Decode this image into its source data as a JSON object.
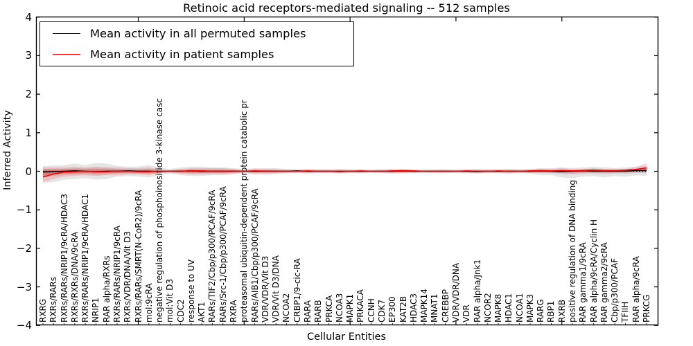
{
  "figure": {
    "title": "Retinoic acid receptors-mediated signaling -- 512 samples",
    "xlabel": "Cellular Entities",
    "ylabel": "Inferred Activity"
  },
  "legend": {
    "entries": [
      {
        "label": "Mean activity in all permuted samples",
        "color": "#000000"
      },
      {
        "label": "Mean activity in patient samples",
        "color": "#ff0000"
      }
    ]
  },
  "axes": {
    "y_tick_labels": [
      "4",
      "3",
      "2",
      "1",
      "0",
      "−1",
      "−2",
      "−3",
      "−4"
    ],
    "y_tick_values": [
      4,
      3,
      2,
      1,
      0,
      -1,
      -2,
      -3,
      -4
    ],
    "y_range": [
      -4,
      4
    ],
    "x_major_tick_indices": [
      9,
      19,
      29,
      39,
      49
    ]
  },
  "chart_data": {
    "type": "line",
    "title": "Retinoic acid receptors-mediated signaling -- 512 samples",
    "xlabel": "Cellular Entities",
    "ylabel": "Inferred Activity",
    "ylim": [
      -4,
      4
    ],
    "grid": false,
    "legend_position": "upper left",
    "categories": [
      "RXRG",
      "RXRs/RARs",
      "RXRs/RARs/NRIP1/9cRA/HDAC3",
      "RXRs/RXRs/DNA/9cRA",
      "RXRs/RARs/NRIP1/9cRA/HDAC1",
      "NRIP1",
      "RAR alpha/RXRs",
      "RXRs/RARs/NRIP1/9cRA",
      "RXRs/VDR/DNA/Vit D3",
      "RXRs/RARs/SMRT(N-CoR2)/9cRA",
      "mol:9cRA",
      "negative regulation of phosphoinositide 3-kinase casc",
      "mol:Vit D3",
      "CDC2",
      "response to UV",
      "AKT1",
      "RARs/TIF2/Cbp/p300/PCAF/9cRA",
      "RARs/Src-1/Cbp/p300/PCAF/9cRA",
      "RXRA",
      "proteasomal ubiquitin-dependent protein catabolic pr",
      "RARs/AIB1/Cbp/p300/PCAF/9cRA",
      "VDR/VDR/Vit D3",
      "VDR/Vit D3/DNA",
      "NCOA2",
      "CRBP1/9-cic-RA",
      "RARA",
      "RARB",
      "PRKCA",
      "NCOA3",
      "MAPK1",
      "PRKACA",
      "CCNH",
      "CDK7",
      "EP300",
      "KAT2B",
      "HDAC3",
      "MAPK14",
      "MNAT1",
      "CREBBP",
      "VDR/VDR/DNA",
      "VDR",
      "RAR alpha/Jnk1",
      "NCOR2",
      "MAPK8",
      "HDAC1",
      "NCOA1",
      "MAPK3",
      "RARG",
      "RBP1",
      "RXRB",
      "positive regulation of DNA binding",
      "RAR gamma1/9cRA",
      "RAR alpha/9cRA/Cyclin H",
      "RAR gamma2/9cRA",
      "Cbp/p300/PCAF",
      "TFIIH",
      "RAR alpha/9cRA",
      "PRKCG"
    ],
    "series": [
      {
        "name": "Mean activity in all permuted samples",
        "color": "#000000",
        "line_style": "solid",
        "values": [
          -0.02,
          -0.01,
          0,
          0.01,
          0,
          -0.01,
          0,
          0,
          0.01,
          0,
          0,
          -0.01,
          0,
          0,
          0.01,
          0,
          0,
          0,
          0,
          0,
          0,
          0,
          0,
          0,
          0.01,
          0,
          0,
          0,
          -0.01,
          0,
          0,
          0,
          0,
          0,
          0.01,
          0,
          0,
          0,
          0,
          0,
          0,
          -0.01,
          0,
          0,
          0,
          0,
          0,
          0.01,
          0,
          -0.01,
          0,
          0.01,
          0,
          0,
          0,
          0,
          0.02,
          0.02
        ]
      },
      {
        "name": "Mean activity in patient samples",
        "color": "#ff0000",
        "line_style": "solid",
        "values": [
          -0.15,
          -0.07,
          -0.02,
          -0.01,
          0,
          -0.01,
          -0.01,
          0,
          0,
          -0.01,
          -0.01,
          0,
          0,
          0,
          0.01,
          0.01,
          0,
          0,
          0,
          0,
          0.01,
          0,
          0,
          0,
          0,
          0.01,
          0,
          0,
          0,
          0,
          0.01,
          0,
          0,
          0.01,
          0.02,
          0.01,
          0,
          0,
          0,
          0,
          0.01,
          0,
          0,
          0.01,
          0,
          0,
          0.01,
          0.02,
          0.01,
          0.02,
          0.01,
          0.02,
          0.03,
          0.02,
          0.02,
          0.03,
          0.05,
          0.09
        ]
      }
    ],
    "bands": [
      {
        "name": "permuted samples spread",
        "color": "#888888",
        "upper": [
          0.13,
          0.15,
          0.16,
          0.2,
          0.16,
          0.22,
          0.2,
          0.14,
          0.12,
          0.12,
          0.16,
          0.1,
          0.06,
          0.1,
          0.12,
          0.12,
          0.1,
          0.1,
          0.08,
          0.06,
          0.08,
          0.08,
          0.08,
          0.06,
          0.05,
          0.06,
          0.05,
          0.05,
          0.06,
          0.05,
          0.05,
          0.04,
          0.05,
          0.06,
          0.05,
          0.05,
          0.04,
          0.05,
          0.05,
          0.04,
          0.05,
          0.06,
          0.05,
          0.05,
          0.06,
          0.05,
          0.06,
          0.08,
          0.08,
          0.1,
          0.08,
          0.1,
          0.12,
          0.1,
          0.08,
          0.1,
          0.12,
          0.15
        ],
        "lower": [
          -0.3,
          -0.28,
          -0.22,
          -0.2,
          -0.18,
          -0.22,
          -0.2,
          -0.14,
          -0.12,
          -0.14,
          -0.16,
          -0.1,
          -0.06,
          -0.1,
          -0.12,
          -0.12,
          -0.1,
          -0.1,
          -0.08,
          -0.06,
          -0.08,
          -0.08,
          -0.08,
          -0.06,
          -0.05,
          -0.06,
          -0.05,
          -0.05,
          -0.06,
          -0.05,
          -0.05,
          -0.04,
          -0.05,
          -0.06,
          -0.05,
          -0.05,
          -0.04,
          -0.05,
          -0.05,
          -0.04,
          -0.05,
          -0.06,
          -0.05,
          -0.05,
          -0.06,
          -0.05,
          -0.06,
          -0.1,
          -0.1,
          -0.16,
          -0.18,
          -0.14,
          -0.12,
          -0.16,
          -0.12,
          -0.14,
          -0.1,
          -0.12
        ]
      },
      {
        "name": "patient samples spread",
        "color": "#ff0000",
        "upper": [
          0.1,
          0.1,
          0.1,
          0.12,
          0.1,
          0.12,
          0.1,
          0.1,
          0.08,
          0.08,
          0.1,
          0.04,
          0.03,
          0.06,
          0.08,
          0.08,
          0.08,
          0.08,
          0.06,
          0.03,
          0.06,
          0.06,
          0.05,
          0.04,
          0.04,
          0.05,
          0.04,
          0.04,
          0.05,
          0.04,
          0.04,
          0.03,
          0.04,
          0.05,
          0.05,
          0.04,
          0.03,
          0.04,
          0.04,
          0.03,
          0.04,
          0.05,
          0.04,
          0.04,
          0.05,
          0.04,
          0.05,
          0.06,
          0.06,
          0.08,
          0.06,
          0.06,
          0.08,
          0.06,
          0.05,
          0.06,
          0.1,
          0.22
        ],
        "lower": [
          -0.28,
          -0.2,
          -0.14,
          -0.12,
          -0.1,
          -0.12,
          -0.1,
          -0.1,
          -0.08,
          -0.08,
          -0.1,
          -0.04,
          -0.03,
          -0.06,
          -0.08,
          -0.08,
          -0.08,
          -0.08,
          -0.06,
          -0.03,
          -0.06,
          -0.06,
          -0.05,
          -0.04,
          -0.04,
          -0.05,
          -0.04,
          -0.04,
          -0.05,
          -0.04,
          -0.04,
          -0.03,
          -0.04,
          -0.05,
          -0.05,
          -0.04,
          -0.03,
          -0.04,
          -0.04,
          -0.03,
          -0.04,
          -0.05,
          -0.04,
          -0.04,
          -0.05,
          -0.04,
          -0.05,
          -0.04,
          -0.04,
          -0.05,
          -0.06,
          -0.04,
          -0.04,
          -0.04,
          -0.04,
          -0.03,
          -0.02,
          -0.02
        ]
      }
    ],
    "reference_line": {
      "y": 0,
      "style": "dotted",
      "color": "#000000"
    }
  }
}
